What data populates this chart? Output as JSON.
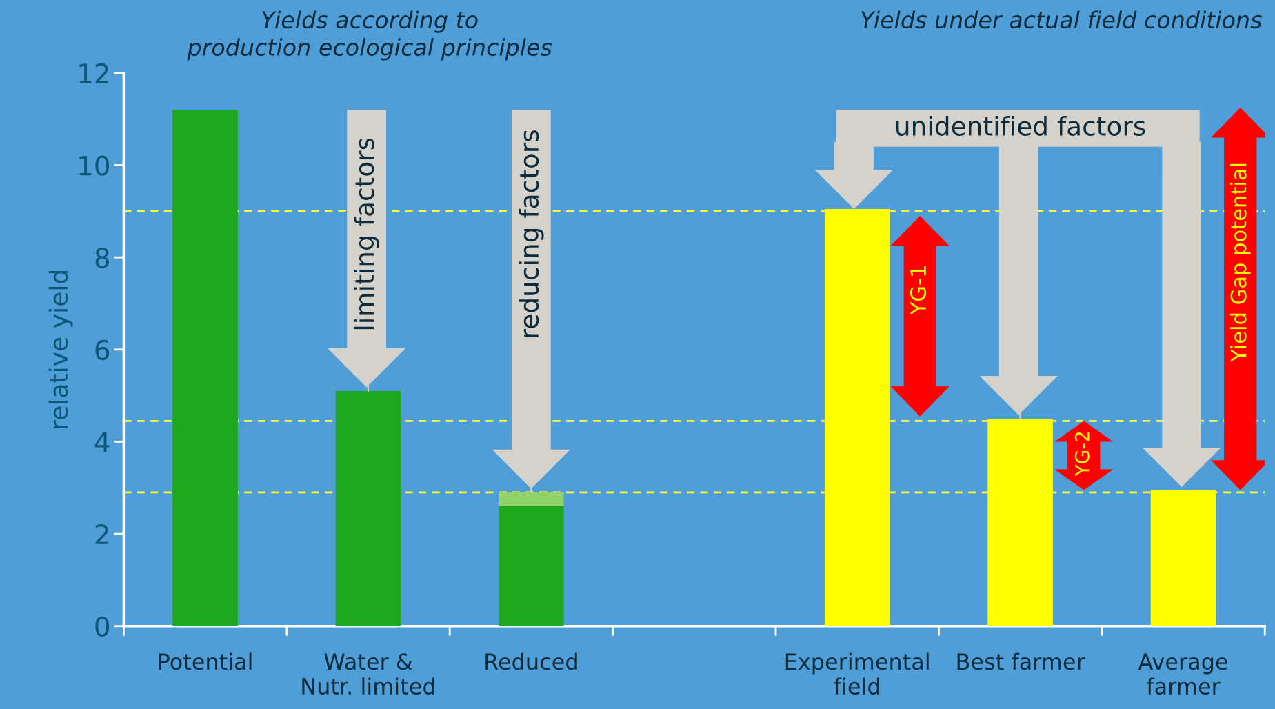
{
  "chart_data": {
    "type": "bar",
    "stacked": true,
    "title": "Yields according to\nproduction ecological principles",
    "subtitle": "Yields under actual field conditions",
    "ylabel": "relative yield",
    "categories": [
      "Potential",
      "Water &\nNutr. limited",
      "Reduced",
      null,
      "Experimental\nfield",
      "Best farmer",
      "Average\nfarmer"
    ],
    "series": [
      {
        "color": "#1fa81f",
        "values": [
          11.2,
          5.1,
          2.6,
          null,
          null,
          null,
          null
        ]
      },
      {
        "color": "#8fd36a",
        "values": [
          null,
          null,
          0.3,
          null,
          null,
          null,
          null
        ]
      },
      {
        "color": "#ffff00",
        "values": [
          null,
          null,
          null,
          null,
          9.05,
          4.5,
          2.95
        ]
      }
    ],
    "ylim": [
      0,
      12
    ],
    "yticks": [
      0,
      2,
      4,
      6,
      8,
      10,
      12
    ],
    "ref_lines": [
      {
        "axis": "y",
        "value": 9.0,
        "color": "#ffff33",
        "line_style": "dashed"
      },
      {
        "axis": "y",
        "value": 4.45,
        "color": "#ffff33",
        "line_style": "dashed"
      },
      {
        "axis": "y",
        "value": 2.9,
        "color": "#ffff33",
        "line_style": "dashed"
      }
    ],
    "annotations": [
      {
        "text": "limiting factors",
        "x": "Water &\nNutr. limited",
        "y": 5.1
      },
      {
        "text": "reducing factors",
        "x": "Reduced",
        "y": 2.9
      },
      {
        "text": "unidentified factors",
        "x": "Best farmer",
        "y": 4.5
      },
      "YG-1",
      "YG-2",
      "Yield Gap potential"
    ],
    "grid": false,
    "legend": false
  }
}
